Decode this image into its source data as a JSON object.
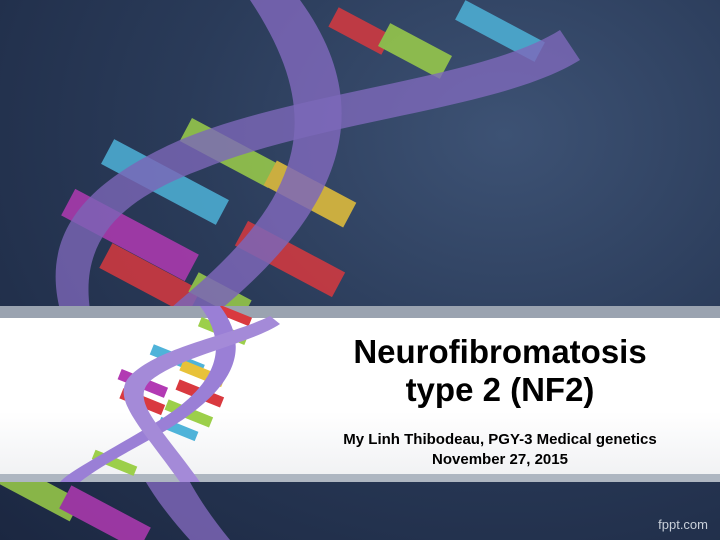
{
  "slide": {
    "title_line1": "Neurofibromatosis",
    "title_line2": "type 2 (NF2)",
    "author_line": "My Linh Thibodeau, PGY-3 Medical genetics",
    "date_line": "November 27, 2015",
    "watermark": "fppt.com"
  },
  "colors": {
    "background": "#2a3b59",
    "helix_backbone": "#8b6fc9",
    "rung_blue": "#4fb3d9",
    "rung_green": "#9ccf4a",
    "rung_red": "#d9393f",
    "rung_magenta": "#b23ab3",
    "rung_yellow": "#e8c23a",
    "band": "#ffffff"
  }
}
